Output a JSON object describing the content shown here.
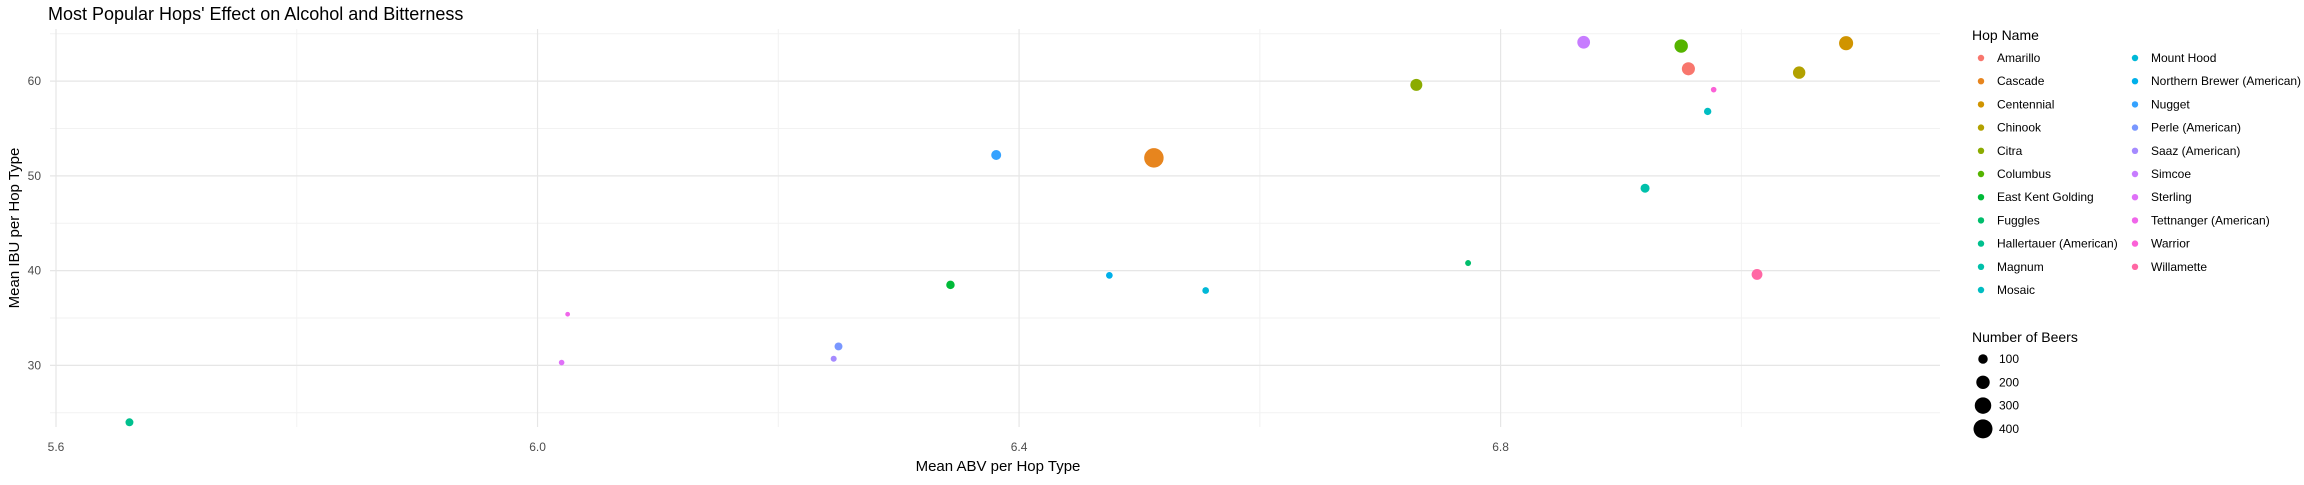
{
  "chart_data": {
    "type": "scatter",
    "title": "Most Popular Hops' Effect on Alcohol and Bitterness",
    "xlabel": "Mean ABV per Hop Type",
    "ylabel": "Mean IBU per Hop Type",
    "xlim": [
      5.595,
      7.165
    ],
    "ylim": [
      23.5,
      65.5
    ],
    "x_ticks": [
      5.6,
      6.0,
      6.4,
      6.8
    ],
    "x_tick_labels": [
      "5.6",
      "6.0",
      "6.4",
      "6.8"
    ],
    "y_ticks": [
      30,
      40,
      50,
      60
    ],
    "y_tick_labels": [
      "30",
      "40",
      "50",
      "60"
    ],
    "grid": true,
    "legend_placement": "right",
    "color_legend_title": "Hop Name",
    "size_legend_title": "Number of Beers",
    "size_legend": [
      {
        "label": "100",
        "value": 100
      },
      {
        "label": "200",
        "value": 200
      },
      {
        "label": "300",
        "value": 300
      },
      {
        "label": "400",
        "value": 400
      }
    ],
    "series": [
      {
        "name": "Amarillo",
        "color": "#F8766D",
        "x": 6.956,
        "y": 61.3,
        "n": 190
      },
      {
        "name": "Cascade",
        "color": "#E7851E",
        "x": 6.512,
        "y": 51.9,
        "n": 420
      },
      {
        "name": "Centennial",
        "color": "#D09400",
        "x": 7.087,
        "y": 64.0,
        "n": 220
      },
      {
        "name": "Chinook",
        "color": "#B2A100",
        "x": 7.048,
        "y": 60.9,
        "n": 170
      },
      {
        "name": "Citra",
        "color": "#8BAB00",
        "x": 6.73,
        "y": 59.6,
        "n": 160
      },
      {
        "name": "Columbus",
        "color": "#55B400",
        "x": 6.95,
        "y": 63.7,
        "n": 200
      },
      {
        "name": "East Kent Golding",
        "color": "#00BA38",
        "x": 6.343,
        "y": 38.5,
        "n": 80
      },
      {
        "name": "Fuggles",
        "color": "#00BE6C",
        "x": 6.773,
        "y": 40.8,
        "n": 40
      },
      {
        "name": "Hallertauer (American)",
        "color": "#00C08E",
        "x": 5.661,
        "y": 24.0,
        "n": 70
      },
      {
        "name": "Magnum",
        "color": "#00C0AA",
        "x": 6.92,
        "y": 48.7,
        "n": 90
      },
      {
        "name": "Mosaic",
        "color": "#00BDC2",
        "x": 6.972,
        "y": 56.8,
        "n": 60
      },
      {
        "name": "Mount Hood",
        "color": "#00B8D7",
        "x": 6.555,
        "y": 37.9,
        "n": 50
      },
      {
        "name": "Northern Brewer (American)",
        "color": "#00B0EA",
        "x": 6.475,
        "y": 39.5,
        "n": 50
      },
      {
        "name": "Nugget",
        "color": "#35A2FF",
        "x": 6.381,
        "y": 52.2,
        "n": 110
      },
      {
        "name": "Perle (American)",
        "color": "#7997FF",
        "x": 6.25,
        "y": 32.0,
        "n": 70
      },
      {
        "name": "Saaz (American)",
        "color": "#A58AFF",
        "x": 6.246,
        "y": 30.7,
        "n": 40
      },
      {
        "name": "Simcoe",
        "color": "#C77CFF",
        "x": 6.869,
        "y": 64.1,
        "n": 180
      },
      {
        "name": "Sterling",
        "color": "#DF70F8",
        "x": 6.02,
        "y": 30.3,
        "n": 35
      },
      {
        "name": "Tettnanger (American)",
        "color": "#F066EA",
        "x": 6.025,
        "y": 35.4,
        "n": 25
      },
      {
        "name": "Warrior",
        "color": "#FB61D7",
        "x": 6.977,
        "y": 59.1,
        "n": 35
      },
      {
        "name": "Willamette",
        "color": "#FF67A4",
        "x": 7.013,
        "y": 39.6,
        "n": 130
      }
    ]
  }
}
